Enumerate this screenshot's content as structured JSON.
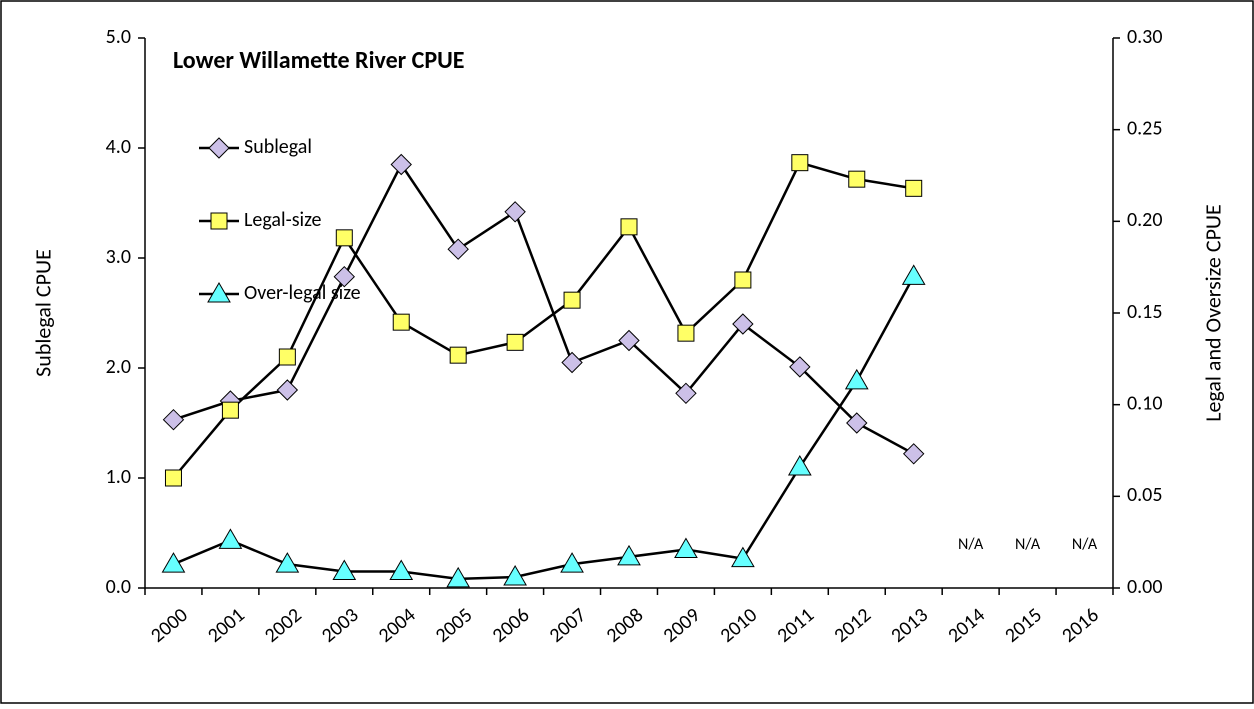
{
  "chart_data": {
    "type": "line",
    "title": "Lower Willamette River CPUE",
    "ylabel": "Sublegal CPUE",
    "y2label": "Legal and Oversize CPUE",
    "categories": [
      "2000",
      "2001",
      "2002",
      "2003",
      "2004",
      "2005",
      "2006",
      "2007",
      "2008",
      "2009",
      "2010",
      "2011",
      "2012",
      "2013",
      "2014",
      "2015",
      "2016"
    ],
    "series": [
      {
        "name": "Sublegal",
        "color": "#ccc0e8",
        "marker": "diamond",
        "axis": "y",
        "values": [
          1.53,
          1.7,
          1.8,
          2.83,
          3.85,
          3.08,
          3.42,
          2.05,
          2.25,
          1.77,
          2.4,
          2.01,
          1.5,
          1.22,
          null,
          null,
          null
        ]
      },
      {
        "name": "Legal-size",
        "color": "#ffff66",
        "marker": "square",
        "axis": "y2",
        "values": [
          0.06,
          0.097,
          0.126,
          0.191,
          0.145,
          0.127,
          0.134,
          0.157,
          0.197,
          0.139,
          0.168,
          0.232,
          0.223,
          0.218,
          null,
          null,
          null
        ]
      },
      {
        "name": "Over-legal size",
        "color": "#66ffff",
        "marker": "triangle",
        "axis": "y2",
        "values": [
          0.013,
          0.026,
          0.013,
          0.009,
          0.009,
          0.005,
          0.006,
          0.013,
          0.017,
          0.021,
          0.016,
          0.066,
          0.113,
          0.17,
          null,
          null,
          null
        ]
      }
    ],
    "ylim": [
      0,
      5
    ],
    "yticks": [
      {
        "value": 0,
        "label": "0.0"
      },
      {
        "value": 1,
        "label": "1.0"
      },
      {
        "value": 2,
        "label": "2.0"
      },
      {
        "value": 3,
        "label": "3.0"
      },
      {
        "value": 4,
        "label": "4.0"
      },
      {
        "value": 5,
        "label": "5.0"
      }
    ],
    "y2lim": [
      0,
      0.3
    ],
    "y2ticks": [
      {
        "value": 0,
        "label": "0.00"
      },
      {
        "value": 0.05,
        "label": "0.05"
      },
      {
        "value": 0.1,
        "label": "0.10"
      },
      {
        "value": 0.15,
        "label": "0.15"
      },
      {
        "value": 0.2,
        "label": "0.20"
      },
      {
        "value": 0.25,
        "label": "0.25"
      },
      {
        "value": 0.3,
        "label": "0.30"
      }
    ],
    "annotations": [
      {
        "label": "N/A",
        "category": "2014"
      },
      {
        "label": "N/A",
        "category": "2015"
      },
      {
        "label": "N/A",
        "category": "2016"
      }
    ],
    "legend": "upper left",
    "grid": false
  }
}
